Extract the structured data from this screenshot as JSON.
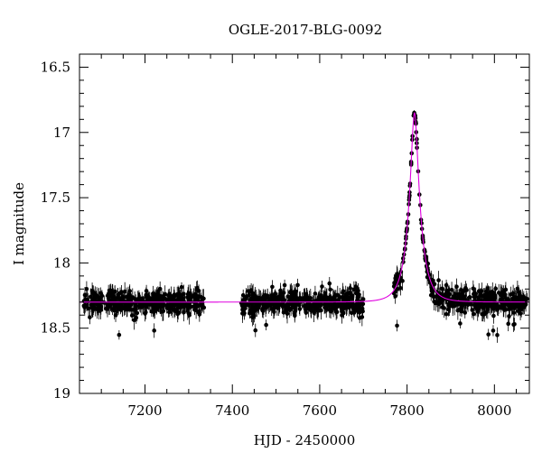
{
  "chart_data": {
    "type": "scatter",
    "title": "OGLE-2017-BLG-0092",
    "xlabel": "HJD - 2450000",
    "ylabel": "I magnitude",
    "xlim": [
      7050,
      8080
    ],
    "ylim": [
      19,
      16.4
    ],
    "y_inverted": true,
    "grid": false,
    "x_ticks": [
      7200,
      7400,
      7600,
      7800,
      8000
    ],
    "x_tick_labels": [
      "7200",
      "7400",
      "7600",
      "7800",
      "8000"
    ],
    "y_ticks": [
      16.5,
      17,
      17.5,
      18,
      18.5,
      19
    ],
    "y_tick_labels": [
      "16.5",
      "17",
      "17.5",
      "18",
      "18.5",
      "19"
    ],
    "model": {
      "color": "#e000e0",
      "baseline_mag": 18.3,
      "peak_time": 7817,
      "peak_mag": 16.85,
      "tE": 28,
      "u0": 0.25
    },
    "series": [
      {
        "marker_color": "#000000",
        "seasons": [
          [
            7060,
            7335
          ],
          [
            7420,
            7700
          ],
          [
            7770,
            8075
          ]
        ]
      }
    ]
  }
}
